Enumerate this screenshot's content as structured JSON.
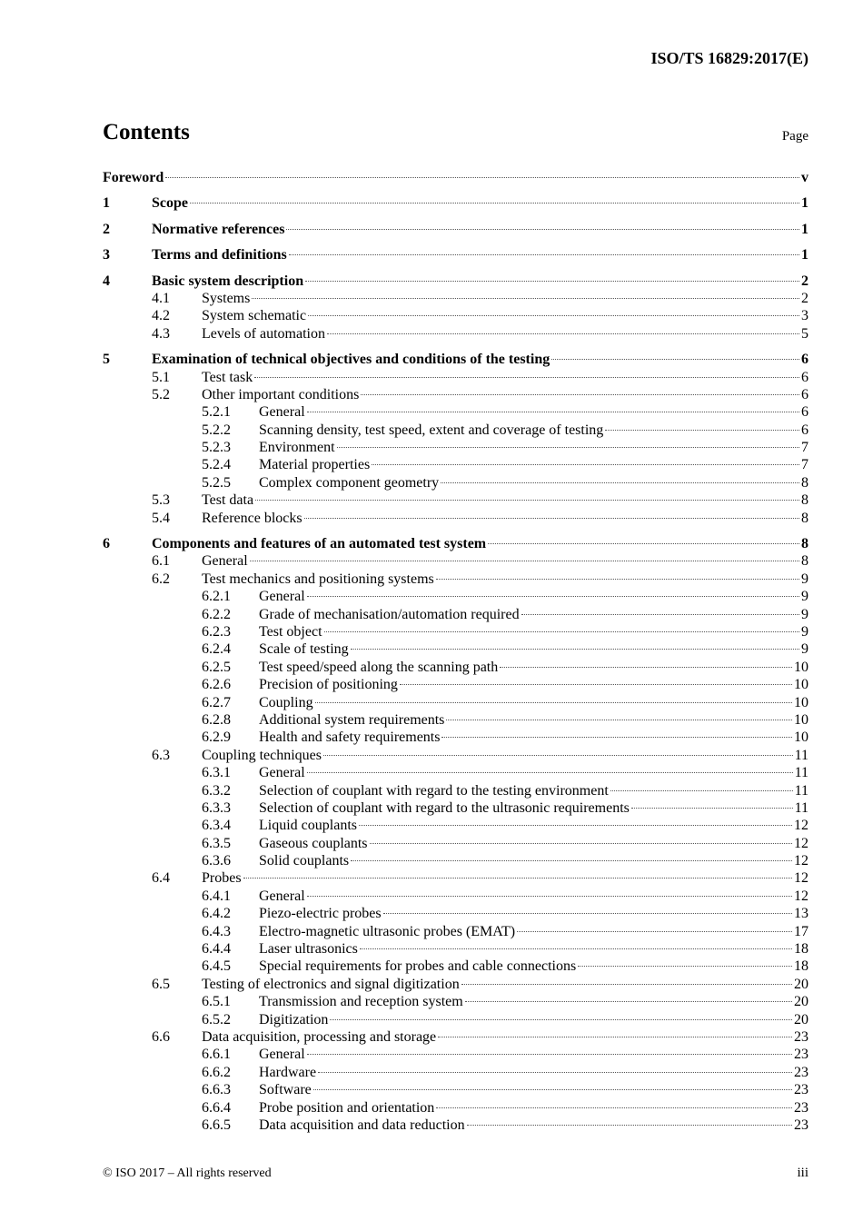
{
  "header": {
    "doc_id": "ISO/TS 16829:2017(E)"
  },
  "contents": {
    "title": "Contents",
    "page_label": "Page"
  },
  "entries": [
    {
      "level": 1,
      "num": "",
      "title": "Foreword",
      "page": "v"
    },
    {
      "level": 1,
      "num": "1",
      "title": "Scope",
      "page": "1"
    },
    {
      "level": 1,
      "num": "2",
      "title": "Normative references",
      "page": "1"
    },
    {
      "level": 1,
      "num": "3",
      "title": "Terms and definitions",
      "page": "1"
    },
    {
      "level": 1,
      "num": "4",
      "title": "Basic system description",
      "page": "2"
    },
    {
      "level": 2,
      "num": "4.1",
      "title": "Systems",
      "page": "2"
    },
    {
      "level": 2,
      "num": "4.2",
      "title": "System schematic",
      "page": "3"
    },
    {
      "level": 2,
      "num": "4.3",
      "title": "Levels of automation",
      "page": "5"
    },
    {
      "level": 1,
      "num": "5",
      "title": "Examination of technical objectives and conditions of the testing",
      "page": "6"
    },
    {
      "level": 2,
      "num": "5.1",
      "title": "Test task",
      "page": "6"
    },
    {
      "level": 2,
      "num": "5.2",
      "title": "Other important conditions",
      "page": "6"
    },
    {
      "level": 3,
      "num": "5.2.1",
      "title": "General",
      "page": "6"
    },
    {
      "level": 3,
      "num": "5.2.2",
      "title": "Scanning density, test speed, extent and coverage of testing",
      "page": "6"
    },
    {
      "level": 3,
      "num": "5.2.3",
      "title": "Environment",
      "page": "7"
    },
    {
      "level": 3,
      "num": "5.2.4",
      "title": "Material properties",
      "page": "7"
    },
    {
      "level": 3,
      "num": "5.2.5",
      "title": "Complex component geometry",
      "page": "8"
    },
    {
      "level": 2,
      "num": "5.3",
      "title": "Test data",
      "page": "8"
    },
    {
      "level": 2,
      "num": "5.4",
      "title": "Reference blocks",
      "page": "8"
    },
    {
      "level": 1,
      "num": "6",
      "title": "Components and features of an automated test system",
      "page": "8"
    },
    {
      "level": 2,
      "num": "6.1",
      "title": "General",
      "page": "8"
    },
    {
      "level": 2,
      "num": "6.2",
      "title": "Test mechanics and positioning systems",
      "page": "9"
    },
    {
      "level": 3,
      "num": "6.2.1",
      "title": "General",
      "page": "9"
    },
    {
      "level": 3,
      "num": "6.2.2",
      "title": "Grade of mechanisation/automation required",
      "page": "9"
    },
    {
      "level": 3,
      "num": "6.2.3",
      "title": "Test object",
      "page": "9"
    },
    {
      "level": 3,
      "num": "6.2.4",
      "title": "Scale of testing",
      "page": "9"
    },
    {
      "level": 3,
      "num": "6.2.5",
      "title": "Test speed/speed along the scanning path",
      "page": "10"
    },
    {
      "level": 3,
      "num": "6.2.6",
      "title": "Precision of positioning",
      "page": "10"
    },
    {
      "level": 3,
      "num": "6.2.7",
      "title": "Coupling",
      "page": "10"
    },
    {
      "level": 3,
      "num": "6.2.8",
      "title": "Additional system requirements",
      "page": "10"
    },
    {
      "level": 3,
      "num": "6.2.9",
      "title": "Health and safety requirements",
      "page": "10"
    },
    {
      "level": 2,
      "num": "6.3",
      "title": "Coupling techniques",
      "page": "11"
    },
    {
      "level": 3,
      "num": "6.3.1",
      "title": "General",
      "page": "11"
    },
    {
      "level": 3,
      "num": "6.3.2",
      "title": "Selection of couplant with regard to the testing environment",
      "page": "11"
    },
    {
      "level": 3,
      "num": "6.3.3",
      "title": "Selection of couplant with regard to the ultrasonic requirements",
      "page": "11"
    },
    {
      "level": 3,
      "num": "6.3.4",
      "title": "Liquid couplants",
      "page": "12"
    },
    {
      "level": 3,
      "num": "6.3.5",
      "title": "Gaseous couplants",
      "page": "12"
    },
    {
      "level": 3,
      "num": "6.3.6",
      "title": "Solid couplants",
      "page": "12"
    },
    {
      "level": 2,
      "num": "6.4",
      "title": "Probes",
      "page": "12"
    },
    {
      "level": 3,
      "num": "6.4.1",
      "title": "General",
      "page": "12"
    },
    {
      "level": 3,
      "num": "6.4.2",
      "title": "Piezo-electric probes",
      "page": "13"
    },
    {
      "level": 3,
      "num": "6.4.3",
      "title": "Electro-magnetic ultrasonic probes (EMAT)",
      "page": "17"
    },
    {
      "level": 3,
      "num": "6.4.4",
      "title": "Laser ultrasonics",
      "page": "18"
    },
    {
      "level": 3,
      "num": "6.4.5",
      "title": "Special requirements for probes and cable connections",
      "page": "18"
    },
    {
      "level": 2,
      "num": "6.5",
      "title": "Testing of electronics and signal digitization",
      "page": "20"
    },
    {
      "level": 3,
      "num": "6.5.1",
      "title": "Transmission and reception system",
      "page": "20"
    },
    {
      "level": 3,
      "num": "6.5.2",
      "title": "Digitization",
      "page": "20"
    },
    {
      "level": 2,
      "num": "6.6",
      "title": "Data acquisition, processing and storage",
      "page": "23"
    },
    {
      "level": 3,
      "num": "6.6.1",
      "title": "General",
      "page": "23"
    },
    {
      "level": 3,
      "num": "6.6.2",
      "title": "Hardware",
      "page": "23"
    },
    {
      "level": 3,
      "num": "6.6.3",
      "title": "Software",
      "page": "23"
    },
    {
      "level": 3,
      "num": "6.6.4",
      "title": "Probe position and orientation",
      "page": "23"
    },
    {
      "level": 3,
      "num": "6.6.5",
      "title": "Data acquisition and data reduction",
      "page": "23"
    }
  ],
  "footer": {
    "copyright": "© ISO 2017 – All rights reserved",
    "page_number": "iii"
  }
}
